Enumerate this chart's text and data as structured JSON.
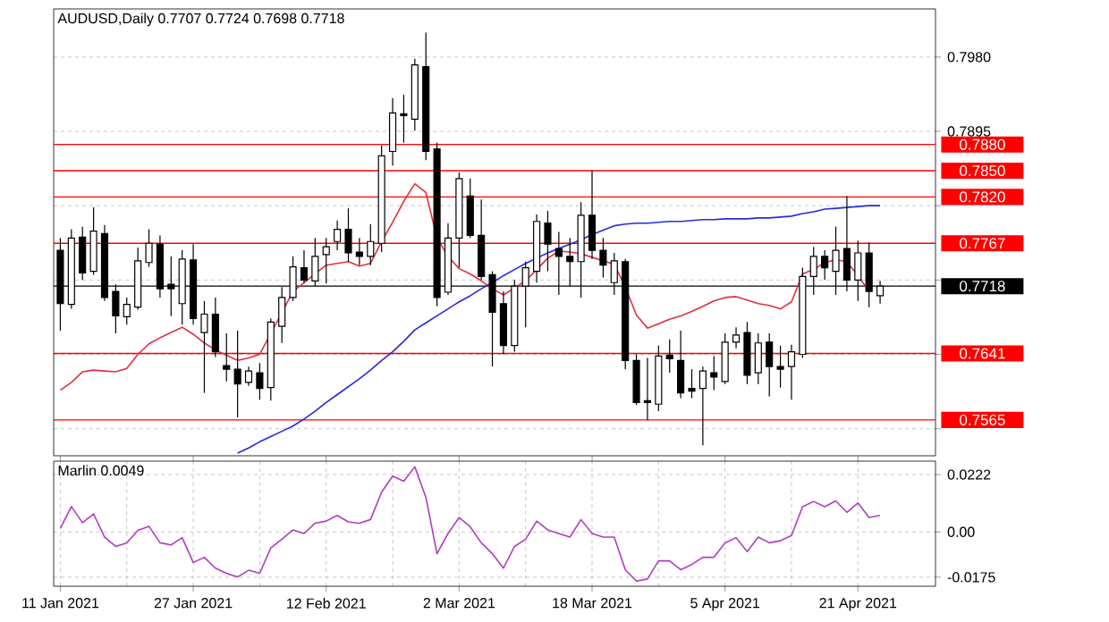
{
  "chart_data": [
    {
      "type": "candlestick",
      "title": "AUDUSD,Daily 0.7707 0.7724 0.7698 0.7718",
      "categories": [
        null,
        null,
        null,
        null,
        null,
        null,
        null,
        null,
        null,
        null,
        null,
        null,
        null,
        null,
        null,
        null,
        null,
        null,
        null,
        null,
        null,
        null,
        null,
        null,
        null,
        null,
        null,
        null,
        null,
        null,
        null,
        null,
        null,
        null,
        null,
        null,
        null,
        null,
        null,
        null,
        null,
        null,
        null,
        null,
        null,
        null,
        null,
        null,
        null,
        null,
        null,
        null,
        null,
        null,
        null,
        null,
        null,
        null,
        null,
        null,
        null,
        null,
        null,
        null,
        null,
        null,
        null,
        null,
        null,
        null,
        null,
        null,
        null,
        null,
        null
      ],
      "ohlc": [
        [
          0.7759,
          0.7773,
          0.7667,
          0.7698
        ],
        [
          0.7697,
          0.7783,
          0.7692,
          0.7773
        ],
        [
          0.7774,
          0.7786,
          0.7725,
          0.7733
        ],
        [
          0.7735,
          0.7808,
          0.7731,
          0.7781
        ],
        [
          0.7778,
          0.7788,
          0.7701,
          0.7705
        ],
        [
          0.7712,
          0.772,
          0.7664,
          0.7684
        ],
        [
          0.7683,
          0.7705,
          0.7674,
          0.7697
        ],
        [
          0.7694,
          0.7762,
          0.7691,
          0.7747
        ],
        [
          0.7745,
          0.7783,
          0.774,
          0.7767
        ],
        [
          0.7766,
          0.7776,
          0.7705,
          0.7715
        ],
        [
          0.772,
          0.7752,
          0.7684,
          0.7715
        ],
        [
          0.7698,
          0.7759,
          0.7674,
          0.7749
        ],
        [
          0.7748,
          0.7766,
          0.7674,
          0.7681
        ],
        [
          0.7665,
          0.7701,
          0.7596,
          0.7686
        ],
        [
          0.7686,
          0.7705,
          0.7637,
          0.7643
        ],
        [
          0.7627,
          0.7664,
          0.7609,
          0.7623
        ],
        [
          0.7623,
          0.7667,
          0.7568,
          0.7606
        ],
        [
          0.7608,
          0.7626,
          0.7604,
          0.7621
        ],
        [
          0.7619,
          0.763,
          0.7588,
          0.7601
        ],
        [
          0.7602,
          0.7681,
          0.7587,
          0.7677
        ],
        [
          0.7672,
          0.7717,
          0.7653,
          0.7705
        ],
        [
          0.7705,
          0.7752,
          0.7701,
          0.774
        ],
        [
          0.7739,
          0.7759,
          0.7722,
          0.7725
        ],
        [
          0.7724,
          0.7773,
          0.7718,
          0.7752
        ],
        [
          0.7754,
          0.7773,
          0.7721,
          0.7763
        ],
        [
          0.7769,
          0.7793,
          0.7759,
          0.7783
        ],
        [
          0.7783,
          0.7807,
          0.7746,
          0.7756
        ],
        [
          0.7757,
          0.7773,
          0.7742,
          0.7752
        ],
        [
          0.7752,
          0.7789,
          0.7742,
          0.7769
        ],
        [
          0.7767,
          0.7879,
          0.7757,
          0.7867
        ],
        [
          0.7872,
          0.7933,
          0.7856,
          0.7916
        ],
        [
          0.7915,
          0.7937,
          0.7882,
          0.7913
        ],
        [
          0.7909,
          0.7978,
          0.7896,
          0.7971
        ],
        [
          0.7969,
          0.8008,
          0.7862,
          0.7872
        ],
        [
          0.7875,
          0.7882,
          0.7695,
          0.7705
        ],
        [
          0.7711,
          0.779,
          0.7708,
          0.7773
        ],
        [
          0.7773,
          0.7848,
          0.7739,
          0.7841
        ],
        [
          0.7821,
          0.7841,
          0.7773,
          0.7776
        ],
        [
          0.7776,
          0.7817,
          0.7725,
          0.7729
        ],
        [
          0.7731,
          0.7735,
          0.7626,
          0.7688
        ],
        [
          0.7698,
          0.7712,
          0.764,
          0.765
        ],
        [
          0.765,
          0.7725,
          0.7643,
          0.7718
        ],
        [
          0.7718,
          0.7746,
          0.7671,
          0.7739
        ],
        [
          0.7735,
          0.78,
          0.7722,
          0.7792
        ],
        [
          0.779,
          0.7804,
          0.7735,
          0.7766
        ],
        [
          0.7761,
          0.778,
          0.7708,
          0.7752
        ],
        [
          0.7752,
          0.7773,
          0.7718,
          0.7746
        ],
        [
          0.7746,
          0.7814,
          0.7705,
          0.7799
        ],
        [
          0.7799,
          0.785,
          0.7749,
          0.7759
        ],
        [
          0.7759,
          0.7773,
          0.7728,
          0.7742
        ],
        [
          0.7722,
          0.7756,
          0.7708,
          0.7747
        ],
        [
          0.7746,
          0.7749,
          0.7623,
          0.7633
        ],
        [
          0.7633,
          0.764,
          0.7582,
          0.7585
        ],
        [
          0.7587,
          0.7636,
          0.7565,
          0.7585
        ],
        [
          0.7583,
          0.765,
          0.7575,
          0.7638
        ],
        [
          0.7639,
          0.7657,
          0.7619,
          0.7635
        ],
        [
          0.7633,
          0.7667,
          0.759,
          0.7596
        ],
        [
          0.7601,
          0.7623,
          0.759,
          0.7598
        ],
        [
          0.7601,
          0.7626,
          0.7536,
          0.7621
        ],
        [
          0.7619,
          0.7638,
          0.7599,
          0.7614
        ],
        [
          0.7609,
          0.7664,
          0.7606,
          0.7654
        ],
        [
          0.7654,
          0.7671,
          0.7647,
          0.7662
        ],
        [
          0.7665,
          0.7677,
          0.7606,
          0.7616
        ],
        [
          0.7619,
          0.7664,
          0.7606,
          0.7653
        ],
        [
          0.7654,
          0.7664,
          0.7592,
          0.7626
        ],
        [
          0.7626,
          0.765,
          0.7602,
          0.7623
        ],
        [
          0.7626,
          0.7651,
          0.7588,
          0.7643
        ],
        [
          0.764,
          0.7739,
          0.7636,
          0.7729
        ],
        [
          0.7729,
          0.7763,
          0.7708,
          0.7752
        ],
        [
          0.7752,
          0.7759,
          0.7725,
          0.7739
        ],
        [
          0.7735,
          0.7786,
          0.7708,
          0.7759
        ],
        [
          0.7761,
          0.7821,
          0.7712,
          0.7725
        ],
        [
          0.7725,
          0.777,
          0.7701,
          0.7756
        ],
        [
          0.7756,
          0.7768,
          0.7694,
          0.7712
        ],
        [
          0.7707,
          0.7724,
          0.7698,
          0.7718
        ]
      ],
      "series": [
        {
          "type": "line",
          "color": "#e03040",
          "values": [
            0.7599,
            0.7608,
            0.762,
            0.7622,
            0.7621,
            0.762,
            0.7624,
            0.764,
            0.7652,
            0.7659,
            0.7665,
            0.7671,
            0.7663,
            0.7653,
            0.7645,
            0.7639,
            0.7633,
            0.7636,
            0.764,
            0.7664,
            0.7688,
            0.7712,
            0.7722,
            0.7732,
            0.7742,
            0.7744,
            0.7746,
            0.7741,
            0.7744,
            0.7769,
            0.7791,
            0.7815,
            0.7835,
            0.7825,
            0.7773,
            0.7752,
            0.7738,
            0.7732,
            0.7724,
            0.7715,
            0.7708,
            0.7716,
            0.7724,
            0.7737,
            0.775,
            0.7758,
            0.7757,
            0.7755,
            0.7751,
            0.7747,
            0.7743,
            0.7717,
            0.7685,
            0.767,
            0.7675,
            0.768,
            0.7684,
            0.7689,
            0.7695,
            0.7701,
            0.7705,
            0.7706,
            0.7702,
            0.7698,
            0.7696,
            0.7692,
            0.77,
            0.7732,
            0.7737,
            0.7745,
            0.7748,
            0.7746,
            0.773,
            0.7712,
            null
          ]
        },
        {
          "type": "line",
          "color": "#2828e0",
          "values": [
            null,
            null,
            null,
            null,
            null,
            null,
            null,
            null,
            null,
            null,
            null,
            null,
            null,
            null,
            null,
            null,
            0.7527,
            0.7533,
            0.754,
            0.7546,
            0.7552,
            0.7558,
            0.7566,
            0.7575,
            0.7585,
            0.7594,
            0.7603,
            0.7612,
            0.7622,
            0.7633,
            0.7643,
            0.7655,
            0.7668,
            0.7676,
            0.7684,
            0.7692,
            0.77,
            0.7707,
            0.7715,
            0.7722,
            0.773,
            0.7737,
            0.7744,
            0.775,
            0.7756,
            0.7761,
            0.7766,
            0.7771,
            0.7777,
            0.7782,
            0.7787,
            0.7789,
            0.779,
            0.779,
            0.7791,
            0.7792,
            0.7792,
            0.7793,
            0.7794,
            0.7794,
            0.7795,
            0.7795,
            0.7795,
            0.7796,
            0.7796,
            0.7797,
            0.7798,
            0.7801,
            0.7803,
            0.7806,
            0.7807,
            0.7808,
            0.7809,
            0.781,
            0.781
          ]
        }
      ],
      "ylim": [
        0.7524,
        0.8035
      ],
      "yticks": [
        {
          "value": 0.798,
          "label": "0.7980"
        },
        0.7895,
        {
          "value": 0.781,
          "label": null
        },
        {
          "value": 0.7725,
          "label": null
        },
        {
          "value": 0.764,
          "label": null
        },
        {
          "value": 0.7555,
          "label": null
        }
      ],
      "ref_lines": [
        {
          "axis": "y",
          "value": 0.788,
          "label": "0.7880",
          "color": "#ff0000"
        },
        {
          "axis": "y",
          "value": 0.785,
          "label": "0.7850",
          "color": "#ff0000"
        },
        {
          "axis": "y",
          "value": 0.782,
          "label": "0.7820",
          "color": "#ff0000"
        },
        {
          "axis": "y",
          "value": 0.7767,
          "label": "0.7767",
          "color": "#ff0000"
        },
        {
          "axis": "y",
          "value": 0.7641,
          "label": "0.7641",
          "color": "#ff0000"
        },
        {
          "axis": "y",
          "value": 0.7565,
          "label": "0.7565",
          "color": "#ff0000"
        },
        {
          "axis": "y",
          "value": 0.7718,
          "label": "0.7718",
          "color": "#000000"
        }
      ],
      "grid": true,
      "tick_labels": "y"
    },
    {
      "type": "line",
      "title": "Marlin 0.0049",
      "categories": [
        "11 Jan 2021",
        null,
        null,
        null,
        null,
        null,
        null,
        null,
        null,
        null,
        null,
        null,
        "27 Jan 2021",
        null,
        null,
        null,
        null,
        null,
        null,
        null,
        null,
        null,
        null,
        null,
        "12 Feb 2021",
        null,
        null,
        null,
        null,
        null,
        null,
        null,
        null,
        null,
        null,
        null,
        "2 Mar 2021",
        null,
        null,
        null,
        null,
        null,
        null,
        null,
        null,
        null,
        null,
        null,
        "18 Mar 2021",
        null,
        null,
        null,
        null,
        null,
        null,
        null,
        null,
        null,
        null,
        null,
        "5 Apr 2021",
        null,
        null,
        null,
        null,
        null,
        null,
        null,
        null,
        null,
        null,
        null,
        "21 Apr 2021",
        null,
        null
      ],
      "series": [
        {
          "color": "#b03cc0",
          "values": [
            0.0014,
            0.0098,
            0.0036,
            0.007,
            -0.002,
            -0.0056,
            -0.0042,
            0.0006,
            0.0022,
            -0.0042,
            -0.005,
            -0.0022,
            -0.0118,
            -0.0098,
            -0.014,
            -0.016,
            -0.0174,
            -0.0148,
            -0.016,
            -0.0062,
            -0.0028,
            0.0008,
            -0.0006,
            0.0034,
            0.0042,
            0.0064,
            0.0039,
            0.0034,
            0.0048,
            0.0154,
            0.0216,
            0.0196,
            0.0252,
            0.0134,
            -0.0084,
            -0.0006,
            0.0056,
            0.002,
            -0.0042,
            -0.0084,
            -0.014,
            -0.0056,
            -0.0028,
            0.0042,
            0.0008,
            -0.0006,
            -0.002,
            0.0048,
            -0.0006,
            -0.002,
            -0.002,
            -0.0146,
            -0.019,
            -0.0182,
            -0.0112,
            -0.0112,
            -0.0146,
            -0.0126,
            -0.0098,
            -0.0098,
            -0.0042,
            -0.0022,
            -0.0076,
            -0.002,
            -0.0042,
            -0.0034,
            -0.0014,
            0.0098,
            0.0118,
            0.0098,
            0.012,
            0.0076,
            0.0112,
            0.0056,
            0.0064
          ]
        }
      ],
      "ylim": [
        -0.021,
        0.0274
      ],
      "yticks": [
        0.0222,
        {
          "value": 0,
          "label": "0.00"
        },
        -0.0175
      ],
      "grid": true
    }
  ]
}
